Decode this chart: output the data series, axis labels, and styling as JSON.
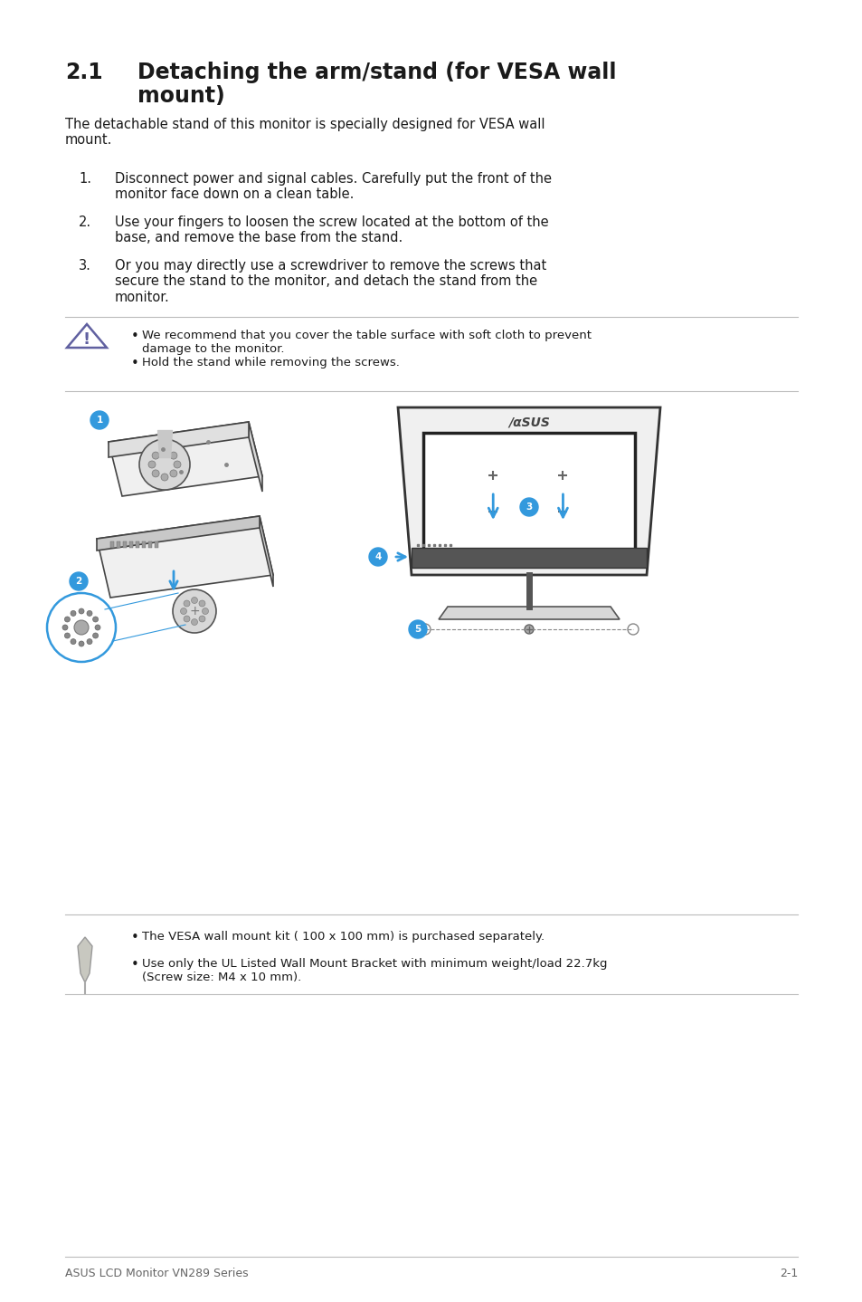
{
  "bg_color": "#ffffff",
  "ml": 0.075,
  "mr": 0.925,
  "section_number": "2.1",
  "section_title_line1": "Detaching the arm/stand (for VESA wall",
  "section_title_line2": "mount)",
  "intro_text": "The detachable stand of this monitor is specially designed for VESA wall\nmount.",
  "list_items": [
    "Disconnect power and signal cables. Carefully put the front of the\nmonitor face down on a clean table.",
    "Use your fingers to loosen the screw located at the bottom of the\nbase, and remove the base from the stand.",
    "Or you may directly use a screwdriver to remove the screws that\nsecure the stand to the monitor, and detach the stand from the\nmonitor."
  ],
  "warning_bullets": [
    "We recommend that you cover the table surface with soft cloth to prevent\ndamage to the monitor.",
    "Hold the stand while removing the screws."
  ],
  "note_bullets": [
    "The VESA wall mount kit ( 100 x 100 mm) is purchased separately.",
    "Use only the UL Listed Wall Mount Bracket with minimum weight/load 22.7kg\n(Screw size: M4 x 10 mm)."
  ],
  "footer_left": "ASUS LCD Monitor VN289 Series",
  "footer_right": "2-1",
  "title_font_size": 17,
  "body_font_size": 10.5,
  "small_font_size": 9.5,
  "footer_font_size": 9,
  "text_color": "#1a1a1a",
  "warn_color": "#6060a0",
  "blue_color": "#3399dd",
  "gray_line": "#bbbbbb",
  "light_gray": "#aaaaaa"
}
